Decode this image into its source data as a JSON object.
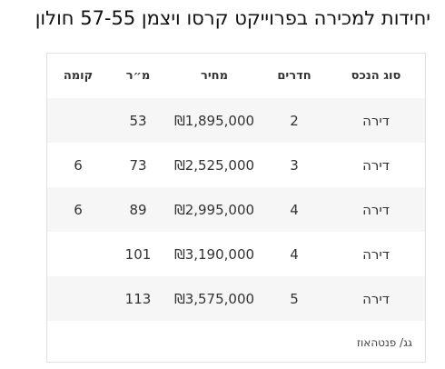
{
  "title": "יחידות למכירה בפרוייקט קרסו ויצמן 57-55 חולון",
  "table": {
    "headers": {
      "type": "סוג הנכס",
      "rooms": "חדרים",
      "price": "מחיר",
      "area": "מ״ר",
      "floor": "קומה"
    },
    "rows": [
      {
        "type": "דירה",
        "rooms": "2",
        "price": "₪1,895,000",
        "area": "53",
        "floor": ""
      },
      {
        "type": "דירה",
        "rooms": "3",
        "price": "₪2,525,000",
        "area": "73",
        "floor": "6"
      },
      {
        "type": "דירה",
        "rooms": "4",
        "price": "₪2,995,000",
        "area": "89",
        "floor": "6"
      },
      {
        "type": "דירה",
        "rooms": "4",
        "price": "₪3,190,000",
        "area": "101",
        "floor": ""
      },
      {
        "type": "דירה",
        "rooms": "5",
        "price": "₪3,575,000",
        "area": "113",
        "floor": ""
      }
    ]
  },
  "credit": "גג/ פנטהאוז"
}
